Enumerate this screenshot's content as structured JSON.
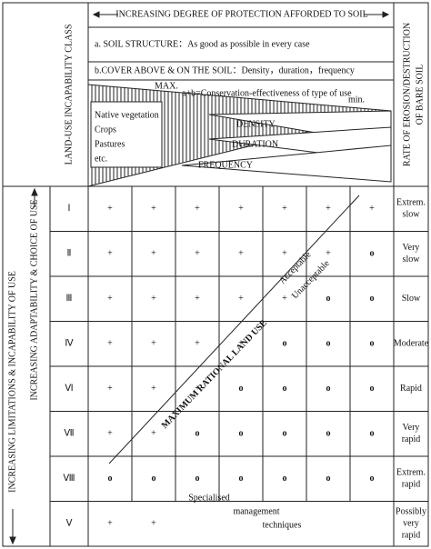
{
  "header": {
    "title": "INCREASING DEGREE OF PROTECTION AFFORDED TO SOIL",
    "class_label": "LAND-USE INCAPABILITY CLASS",
    "erosion_label": [
      "RATE OF EROSION/DESTRUCTION",
      "OF BARE SOIL"
    ]
  },
  "factors": {
    "a": "a. SOIL STRUCTURE：As good as possible in every case",
    "b": "b.COVER ABOVE & ON THE SOIL：Density，duration，frequency",
    "max": "MAX.",
    "formula": "a+b=Conservation-effectiveness of type of use",
    "min": "min.",
    "vegetation": [
      "Native vegetation",
      "Crops",
      "Pastures",
      "etc."
    ],
    "wedges": [
      "DENSITY",
      "DURATION",
      "FREQUENCY"
    ]
  },
  "side": {
    "limitations": "INCREASING LIMITATIONS & INCAPABILITY OF USE",
    "adaptability": "INCREASING ADAPTABILITY & CHOICE OF USE"
  },
  "table": {
    "rows": [
      {
        "class": "Ⅰ",
        "cells": [
          "+",
          "+",
          "+",
          "+",
          "+",
          "+",
          "+"
        ],
        "rate": [
          "Extrem.",
          "slow"
        ]
      },
      {
        "class": "Ⅱ",
        "cells": [
          "+",
          "+",
          "+",
          "+",
          "+",
          "+",
          "o"
        ],
        "rate": [
          "Very",
          "slow"
        ]
      },
      {
        "class": "Ⅲ",
        "cells": [
          "+",
          "+",
          "+",
          "+",
          "+",
          "o",
          "o"
        ],
        "rate": [
          "Slow"
        ]
      },
      {
        "class": "Ⅳ",
        "cells": [
          "+",
          "+",
          "+",
          "+",
          "o",
          "o",
          "o"
        ],
        "rate": [
          "Moderate"
        ]
      },
      {
        "class": "Ⅵ",
        "cells": [
          "+",
          "+",
          "+",
          "o",
          "o",
          "o",
          "o"
        ],
        "rate": [
          "Rapid"
        ]
      },
      {
        "class": "Ⅶ",
        "cells": [
          "+",
          "+",
          "o",
          "o",
          "o",
          "o",
          "o"
        ],
        "rate": [
          "Very",
          "rapid"
        ]
      },
      {
        "class": "Ⅷ",
        "cells": [
          "o",
          "o",
          "o",
          "o",
          "o",
          "o",
          "o"
        ],
        "rate": [
          "Extrem.",
          "rapid"
        ]
      },
      {
        "class": "Ⅴ",
        "cells": [
          "+",
          "+"
        ],
        "rate": [
          "Possibly",
          "very",
          "rapid"
        ]
      }
    ]
  },
  "diagonal": "MAXIMUM RATIONAL LAND USE",
  "acceptable": "Acceptable",
  "unacceptable": "Unacceptable",
  "special": [
    "Specialised",
    "management",
    "techniques"
  ]
}
